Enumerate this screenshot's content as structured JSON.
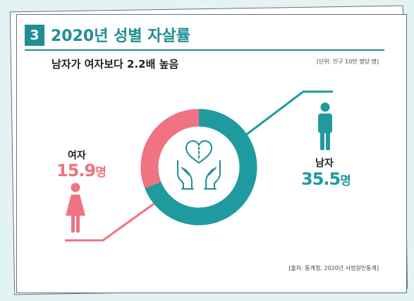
{
  "header": {
    "number": "3",
    "title": "2020년 성별 자살률",
    "subtitle": "남자가 여자보다 2.2배 높음",
    "unit_note": "[단위: 인구 10만 명당 명]",
    "source_note": "[출처: 통계청, 2020년 사망원인통계]"
  },
  "chart_data": {
    "type": "pie",
    "title": "2020년 성별 자살률",
    "categories": [
      "남자",
      "여자"
    ],
    "values": [
      35.5,
      15.9
    ],
    "unit": "명",
    "colors": [
      "#1f9ba0",
      "#ef7381"
    ]
  },
  "labels": {
    "female": {
      "name": "여자",
      "value": "15.9",
      "unit": "명"
    },
    "male": {
      "name": "남자",
      "value": "35.5",
      "unit": "명"
    }
  },
  "icons": {
    "center": "heart-in-hands-icon",
    "female": "female-person-icon",
    "male": "male-person-icon"
  },
  "colors": {
    "accent": "#1f8f93",
    "female": "#ef7381",
    "male": "#1f9ba0",
    "ring_bg": "#e8e8e8"
  }
}
